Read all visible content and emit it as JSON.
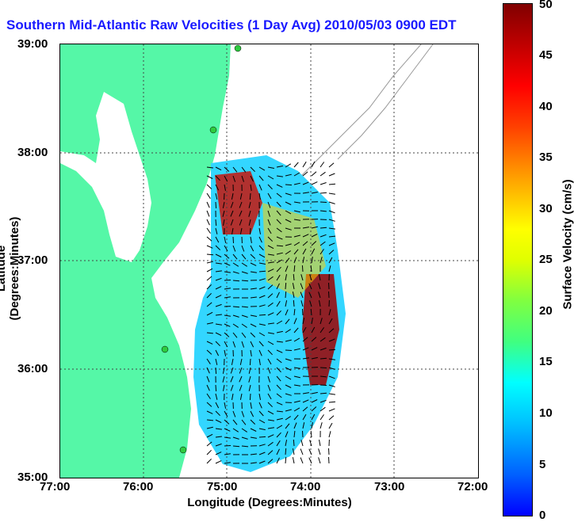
{
  "title": "Southern Mid-Atlantic Raw Velocities (1 Day Avg) 2010/05/03 0900 EDT",
  "axes": {
    "xlabel": "Longitude (Degrees:Minutes)",
    "ylabel": "Latitude (Degrees:Minutes)",
    "xticks": [
      "77:00",
      "76:00",
      "75:00",
      "74:00",
      "73:00",
      "72:00"
    ],
    "yticks": [
      "39:00",
      "38:00",
      "37:00",
      "36:00",
      "35:00"
    ]
  },
  "colorbar": {
    "label": "Surface Velocity (cm/s)",
    "ticks": [
      "50",
      "45",
      "40",
      "35",
      "30",
      "25",
      "20",
      "15",
      "10",
      "5",
      "0"
    ]
  },
  "colors": {
    "land": "#55f7a7",
    "title": "#1a1aff",
    "arrows": "#000000"
  },
  "map": {
    "lon_range": [
      -77,
      -72
    ],
    "lat_range": [
      35,
      39
    ],
    "grid": true
  }
}
